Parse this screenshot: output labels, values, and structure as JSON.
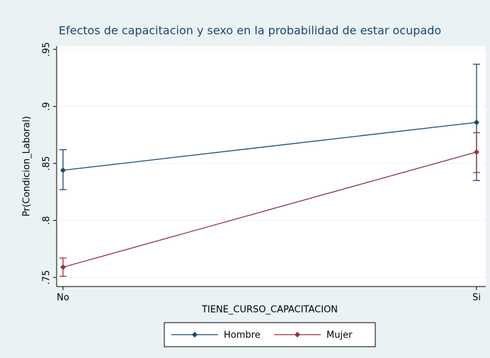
{
  "chart_data": {
    "type": "line",
    "title": "Efectos de capacitacion y sexo en la probabilidad de estar ocupado",
    "x_label": "TIENE_CURSO_CAPACITACION",
    "y_label": "Pr(Condicion_Laboral)",
    "categories": [
      "No",
      "Si"
    ],
    "series": [
      {
        "name": "Hombre",
        "color": "#1a476f",
        "values": [
          0.844,
          0.886
        ],
        "ci_low": [
          0.827,
          0.835
        ],
        "ci_high": [
          0.862,
          0.937
        ]
      },
      {
        "name": "Mujer",
        "color": "#90353b",
        "values": [
          0.759,
          0.86
        ],
        "ci_low": [
          0.751,
          0.842
        ],
        "ci_high": [
          0.767,
          0.877
        ]
      }
    ],
    "ylim": [
      0.742,
      0.953
    ],
    "yticks": [
      {
        "value": 0.75,
        "label": ".75"
      },
      {
        "value": 0.8,
        "label": ".8"
      },
      {
        "value": 0.85,
        "label": ".85"
      },
      {
        "value": 0.9,
        "label": ".9"
      },
      {
        "value": 0.95,
        "label": ".95"
      }
    ],
    "grid": true,
    "legend_position": "bottom"
  }
}
